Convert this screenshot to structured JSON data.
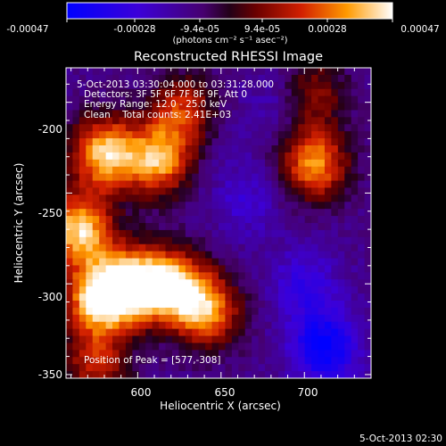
{
  "chart_data": {
    "type": "heatmap",
    "title": "Reconstructed RHESSI Image",
    "colorbar": {
      "ticks": [
        "-0.00047",
        "-0.00028",
        "-9.4e-05",
        "9.4e-05",
        "0.00028",
        "0.00047"
      ],
      "unit_label": "(photons cm⁻² s⁻¹ asec⁻²)",
      "range": [
        -0.00047,
        0.00047
      ]
    },
    "xlabel": "Heliocentric X (arcsec)",
    "ylabel": "Heliocentric Y (arcsec)",
    "x_ticks": [
      "600",
      "650",
      "700"
    ],
    "y_ticks": [
      "-200",
      "-250",
      "-300",
      "-350"
    ],
    "xlim": [
      557,
      740
    ],
    "ylim": [
      -352,
      -181
    ],
    "annotations": [
      "5-Oct-2013 03:30:04.000 to 03:31:28.000",
      "Detectors: 3F 5F 6F 7F 8F 9F, Att 0",
      "Energy Range: 12.0 - 25.0 keV",
      "Clean    Total counts: 2.41E+03"
    ],
    "peak_label": "Position of Peak = [577,-308]",
    "peak": [
      577,
      -308
    ],
    "bright_regions": [
      {
        "x": 580,
        "y": -228,
        "value": 0.0004
      },
      {
        "x": 565,
        "y": -270,
        "value": 0.00042
      },
      {
        "x": 577,
        "y": -308,
        "value": 0.00047
      },
      {
        "x": 598,
        "y": -300,
        "value": 0.00043
      },
      {
        "x": 622,
        "y": -302,
        "value": 0.00037
      },
      {
        "x": 642,
        "y": -315,
        "value": 0.0003
      },
      {
        "x": 612,
        "y": -232,
        "value": 0.00035
      },
      {
        "x": 627,
        "y": -205,
        "value": 0.0002
      },
      {
        "x": 706,
        "y": -234,
        "value": 0.00033
      },
      {
        "x": 705,
        "y": -195,
        "value": 0.00012
      },
      {
        "x": 575,
        "y": -345,
        "value": 0.00018
      }
    ],
    "dark_regions": [
      {
        "x": 712,
        "y": -335,
        "value": -0.00047
      },
      {
        "x": 700,
        "y": -300,
        "value": -0.0003
      },
      {
        "x": 665,
        "y": -255,
        "value": -0.00025
      },
      {
        "x": 685,
        "y": -200,
        "value": -0.00022
      },
      {
        "x": 650,
        "y": -225,
        "value": -0.00015
      }
    ],
    "grid": false
  },
  "footer": {
    "timestamp": "5-Oct-2013 02:30"
  }
}
